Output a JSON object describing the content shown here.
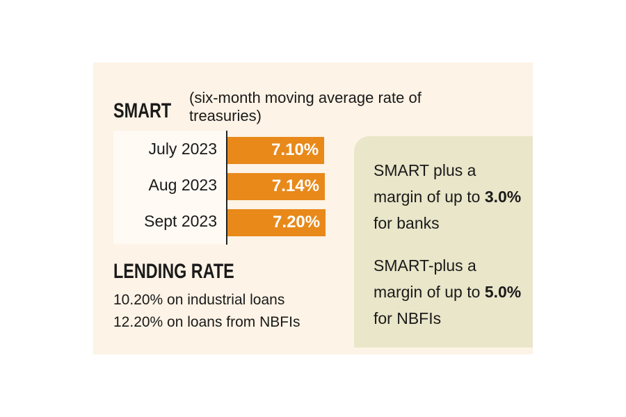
{
  "chart_data": {
    "type": "bar",
    "orientation": "horizontal",
    "title": "SMART",
    "subtitle": "(six-month moving average rate of treasuries)",
    "categories": [
      "July 2023",
      "Aug 2023",
      "Sept 2023"
    ],
    "values": [
      7.1,
      7.14,
      7.2
    ],
    "value_labels": [
      "7.10%",
      "7.14%",
      "7.20%"
    ],
    "bar_color": "#e8891a"
  },
  "lending": {
    "title": "LENDING RATE",
    "lines": [
      "10.20% on industrial loans",
      "12.20% on loans from NBFIs"
    ]
  },
  "notes": [
    {
      "pre": "SMART plus a margin of up to ",
      "bold": "3.0%",
      "post": " for banks"
    },
    {
      "pre": "SMART-plus a margin of up to ",
      "bold": "5.0%",
      "post": " for NBFIs"
    }
  ],
  "colors": {
    "background": "#fdf3e6",
    "panel": "#e9e6c9"
  }
}
